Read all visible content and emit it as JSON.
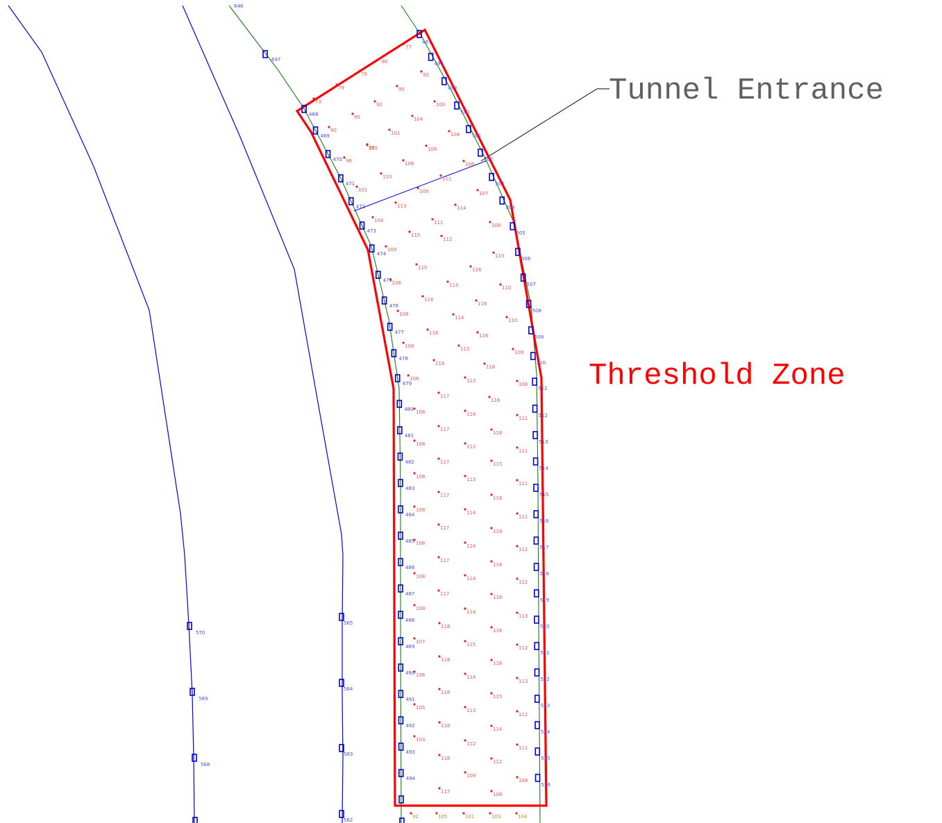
{
  "labels": {
    "tunnel_entrance": "Tunnel Entrance",
    "threshold_zone": "Threshold Zone"
  },
  "colors": {
    "zone_outline": "#ff0000",
    "calc_point": "#e02020",
    "calc_label": "#ee5555",
    "luminaire": "#0000cc",
    "luminaire_label": "#4a4ae0",
    "kerb_line": "#1a7a1a",
    "road_line": "#0000dd",
    "bottom_row": "#e08020",
    "leader": "#000000",
    "entrance_text": "#606060"
  },
  "top_cut_label": "648",
  "luminaires_left": [
    "468",
    "469",
    "470",
    "471",
    "472",
    "473",
    "474",
    "475",
    "476",
    "477",
    "478",
    "479",
    "480",
    "481",
    "482",
    "483",
    "484",
    "485",
    "486",
    "487",
    "488",
    "489",
    "490",
    "491",
    "492",
    "493",
    "494"
  ],
  "luminaires_right": [
    "498",
    "499",
    "500",
    "501",
    "502",
    "503",
    "504",
    "505",
    "506",
    "507",
    "508",
    "509",
    "510",
    "511",
    "512",
    "513",
    "514",
    "515",
    "516",
    "517",
    "518",
    "519",
    "520",
    "521",
    "522",
    "523",
    "524",
    "525",
    "526"
  ],
  "luminaire_top": "497",
  "luminaires_outer_a": [
    "570",
    "569",
    "568"
  ],
  "luminaires_outer_b": [
    "565",
    "564",
    "563",
    "562"
  ],
  "luminaire_647": "647",
  "bottom_row_values": [
    "92",
    "105",
    "101",
    "103",
    "104"
  ],
  "grid_values_near_entrance": [
    [
      "77",
      "80",
      "79",
      "79",
      "73"
    ],
    [
      "92",
      "95",
      "92",
      "95",
      "90"
    ],
    [
      "100",
      "104",
      "101",
      "96",
      "80"
    ],
    [
      "104",
      "108",
      "105",
      "98"
    ],
    [
      "106",
      "106",
      "110",
      "101"
    ],
    [
      "107",
      "109",
      "111",
      "113",
      "104"
    ],
    [
      "114",
      "108",
      "111",
      "115",
      "109"
    ]
  ],
  "grid_columns": [
    [
      "115",
      "116",
      "116",
      "116",
      "117",
      "117",
      "117",
      "117",
      "117",
      "117",
      "117",
      "118",
      "118",
      "118",
      "118",
      "118",
      "117",
      "115",
      "111"
    ],
    [
      "112",
      "113",
      "114",
      "113",
      "113",
      "114",
      "113",
      "113",
      "114",
      "114",
      "114",
      "114",
      "115",
      "114",
      "113",
      "112",
      "109"
    ],
    [
      "116",
      "116",
      "116",
      "116",
      "116",
      "116",
      "115",
      "116",
      "116",
      "116",
      "116",
      "116",
      "116",
      "115",
      "114",
      "112",
      "108"
    ],
    [
      "110",
      "110",
      "110",
      "109",
      "108",
      "111",
      "111",
      "111",
      "111",
      "112",
      "112",
      "113",
      "112",
      "113",
      "112",
      "111",
      "108"
    ]
  ],
  "left_column_values": [
    "108",
    "108",
    "108",
    "108",
    "108",
    "108",
    "108",
    "108",
    "108",
    "108",
    "108",
    "107",
    "106",
    "105",
    "103"
  ]
}
